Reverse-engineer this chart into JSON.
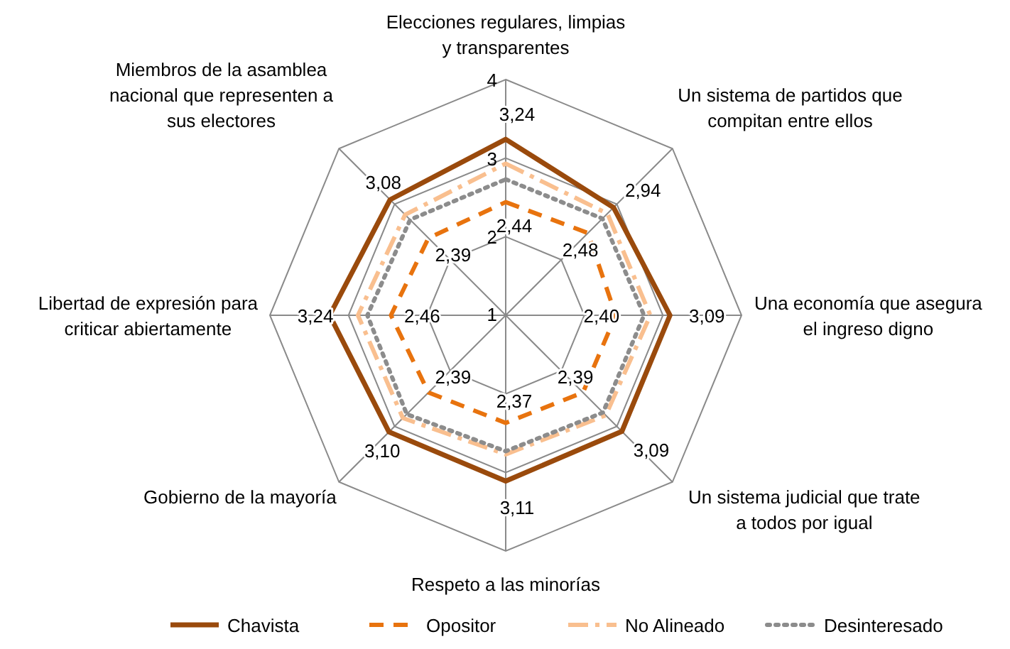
{
  "chart_data": {
    "type": "radar",
    "categories": [
      "Elecciones regulares, limpias y transparentes",
      "Un sistema de partidos que compitan entre ellos",
      "Una economía que asegura el ingreso digno",
      "Un sistema judicial que trate a todos por igual",
      "Respeto a las minorías",
      "Gobierno de la mayoría",
      "Libertad de expresión para criticar abiertamente",
      "Miembros de la asamblea nacional que representen a sus electores"
    ],
    "ylim": [
      1,
      4
    ],
    "yticks": [
      1,
      2,
      3,
      4
    ],
    "legend": "bottom",
    "marker": "none",
    "series": [
      {
        "name": "Chavista",
        "color": "#9a4a0c",
        "line_style": "solid",
        "values": [
          3.24,
          2.94,
          3.09,
          3.09,
          3.11,
          3.1,
          3.24,
          3.08
        ],
        "value_labels": [
          "3,24",
          "2,94",
          "3,09",
          "3,09",
          "3,11",
          "3,10",
          "3,24",
          "3,08"
        ]
      },
      {
        "name": "Opositor",
        "color": "#e8730e",
        "line_style": "dashed",
        "values": [
          2.44,
          2.48,
          2.4,
          2.39,
          2.37,
          2.39,
          2.46,
          2.39
        ],
        "value_labels": [
          "2,44",
          "2,48",
          "2,40",
          "2,39",
          "2,37",
          "2,39",
          "2,46",
          "2,39"
        ]
      },
      {
        "name": "No Alineado",
        "color": "#f9bf8f",
        "line_style": "dashdot",
        "values": [
          2.93,
          2.83,
          2.84,
          2.8,
          2.77,
          2.85,
          2.88,
          2.81
        ]
      },
      {
        "name": "Desinteresado",
        "color": "#8c8c8c",
        "line_style": "dotted",
        "values": [
          2.73,
          2.74,
          2.76,
          2.75,
          2.73,
          2.78,
          2.76,
          2.72
        ]
      }
    ]
  }
}
